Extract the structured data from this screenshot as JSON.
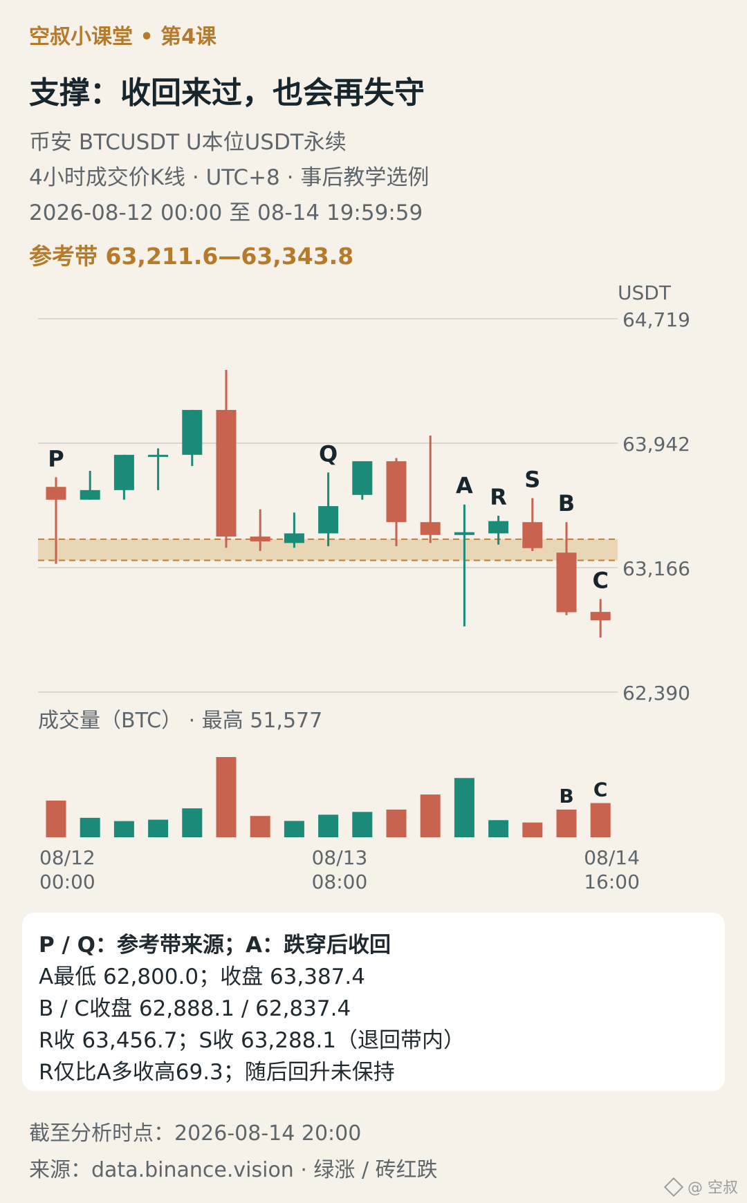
{
  "header": {
    "series": "空叔小课堂 • 第4课",
    "title": "支撑：收回来过，也会再失守",
    "subtitle_market": "币安 BTCUSDT U本位USDT永续",
    "subtitle_interval": "4小时成交价K线 · UTC+8 · 事后教学选例",
    "subtitle_range": "2026-08-12 00:00 至 08-14 19:59:59",
    "band": "参考带 63,211.6—63,343.8"
  },
  "colors": {
    "up": "#1b8a78",
    "down": "#c8634f",
    "band_fill": "#e9d6b6",
    "band_edge": "#c07f34",
    "grid": "#dad6cf",
    "axis_text": "#5e666b"
  },
  "chart_data": {
    "type": "candlestick",
    "unit": "USDT",
    "ylim": [
      62390,
      64719
    ],
    "yticks": [
      "64,719",
      "63,942",
      "63,166",
      "62,390"
    ],
    "grid": true,
    "reference_band": [
      63211.6,
      63343.8
    ],
    "candles": [
      {
        "o": 63670,
        "h": 63730,
        "l": 63190,
        "c": 63590,
        "label": "P"
      },
      {
        "o": 63590,
        "h": 63770,
        "l": 63590,
        "c": 63650,
        "label": ""
      },
      {
        "o": 63650,
        "h": 63870,
        "l": 63590,
        "c": 63870,
        "label": ""
      },
      {
        "o": 63870,
        "h": 63910,
        "l": 63650,
        "c": 63870,
        "label": ""
      },
      {
        "o": 63870,
        "h": 64150,
        "l": 63800,
        "c": 64150,
        "label": ""
      },
      {
        "o": 64150,
        "h": 64400,
        "l": 63290,
        "c": 63360,
        "label": ""
      },
      {
        "o": 63360,
        "h": 63530,
        "l": 63270,
        "c": 63330,
        "label": ""
      },
      {
        "o": 63320,
        "h": 63510,
        "l": 63290,
        "c": 63380,
        "label": ""
      },
      {
        "o": 63380,
        "h": 63760,
        "l": 63300,
        "c": 63550,
        "label": "Q"
      },
      {
        "o": 63620,
        "h": 63820,
        "l": 63590,
        "c": 63830,
        "label": ""
      },
      {
        "o": 63830,
        "h": 63850,
        "l": 63300,
        "c": 63450,
        "label": ""
      },
      {
        "o": 63450,
        "h": 63990,
        "l": 63320,
        "c": 63370,
        "label": ""
      },
      {
        "o": 63370,
        "h": 63560,
        "l": 62800,
        "c": 63387.4,
        "label": "A"
      },
      {
        "o": 63380,
        "h": 63490,
        "l": 63310,
        "c": 63456.7,
        "label": "R"
      },
      {
        "o": 63450,
        "h": 63600,
        "l": 63270,
        "c": 63288.1,
        "label": "S"
      },
      {
        "o": 63260,
        "h": 63450,
        "l": 62870,
        "c": 62888.1,
        "label": "B"
      },
      {
        "o": 62890,
        "h": 62970,
        "l": 62730,
        "c": 62837.4,
        "label": "C"
      }
    ],
    "volume": {
      "title": "成交量（BTC） · 最高 51,577",
      "max": 51577,
      "values": [
        23600,
        12500,
        10400,
        11300,
        18600,
        51577,
        13700,
        10500,
        14500,
        16300,
        17800,
        27500,
        38100,
        11000,
        9500,
        17800,
        22000
      ],
      "labels": [
        "",
        "",
        "",
        "",
        "",
        "",
        "",
        "",
        "",
        "",
        "",
        "",
        "",
        "",
        "",
        "B",
        "C"
      ]
    },
    "x_labels": [
      {
        "index": 0,
        "date": "08/12",
        "time": "00:00"
      },
      {
        "index": 8,
        "date": "08/13",
        "time": "08:00"
      },
      {
        "index": 16,
        "date": "08/14",
        "time": "16:00"
      }
    ]
  },
  "notes": {
    "head": "P / Q：参考带来源；A：跌穿后收回",
    "line1": "A最低 62,800.0；收盘 63,387.4",
    "line2": "B / C收盘 62,888.1 / 62,837.4",
    "line3": "R收 63,456.7；S收 63,288.1（退回带内）",
    "line4": "R仅比A多收高69.3；随后回升未保持"
  },
  "footer": {
    "cutoff": "截至分析时点：2026-08-14 20:00",
    "source": "来源：data.binance.vision · 绿涨 / 砖红跌"
  },
  "watermark": "@ 空叔"
}
